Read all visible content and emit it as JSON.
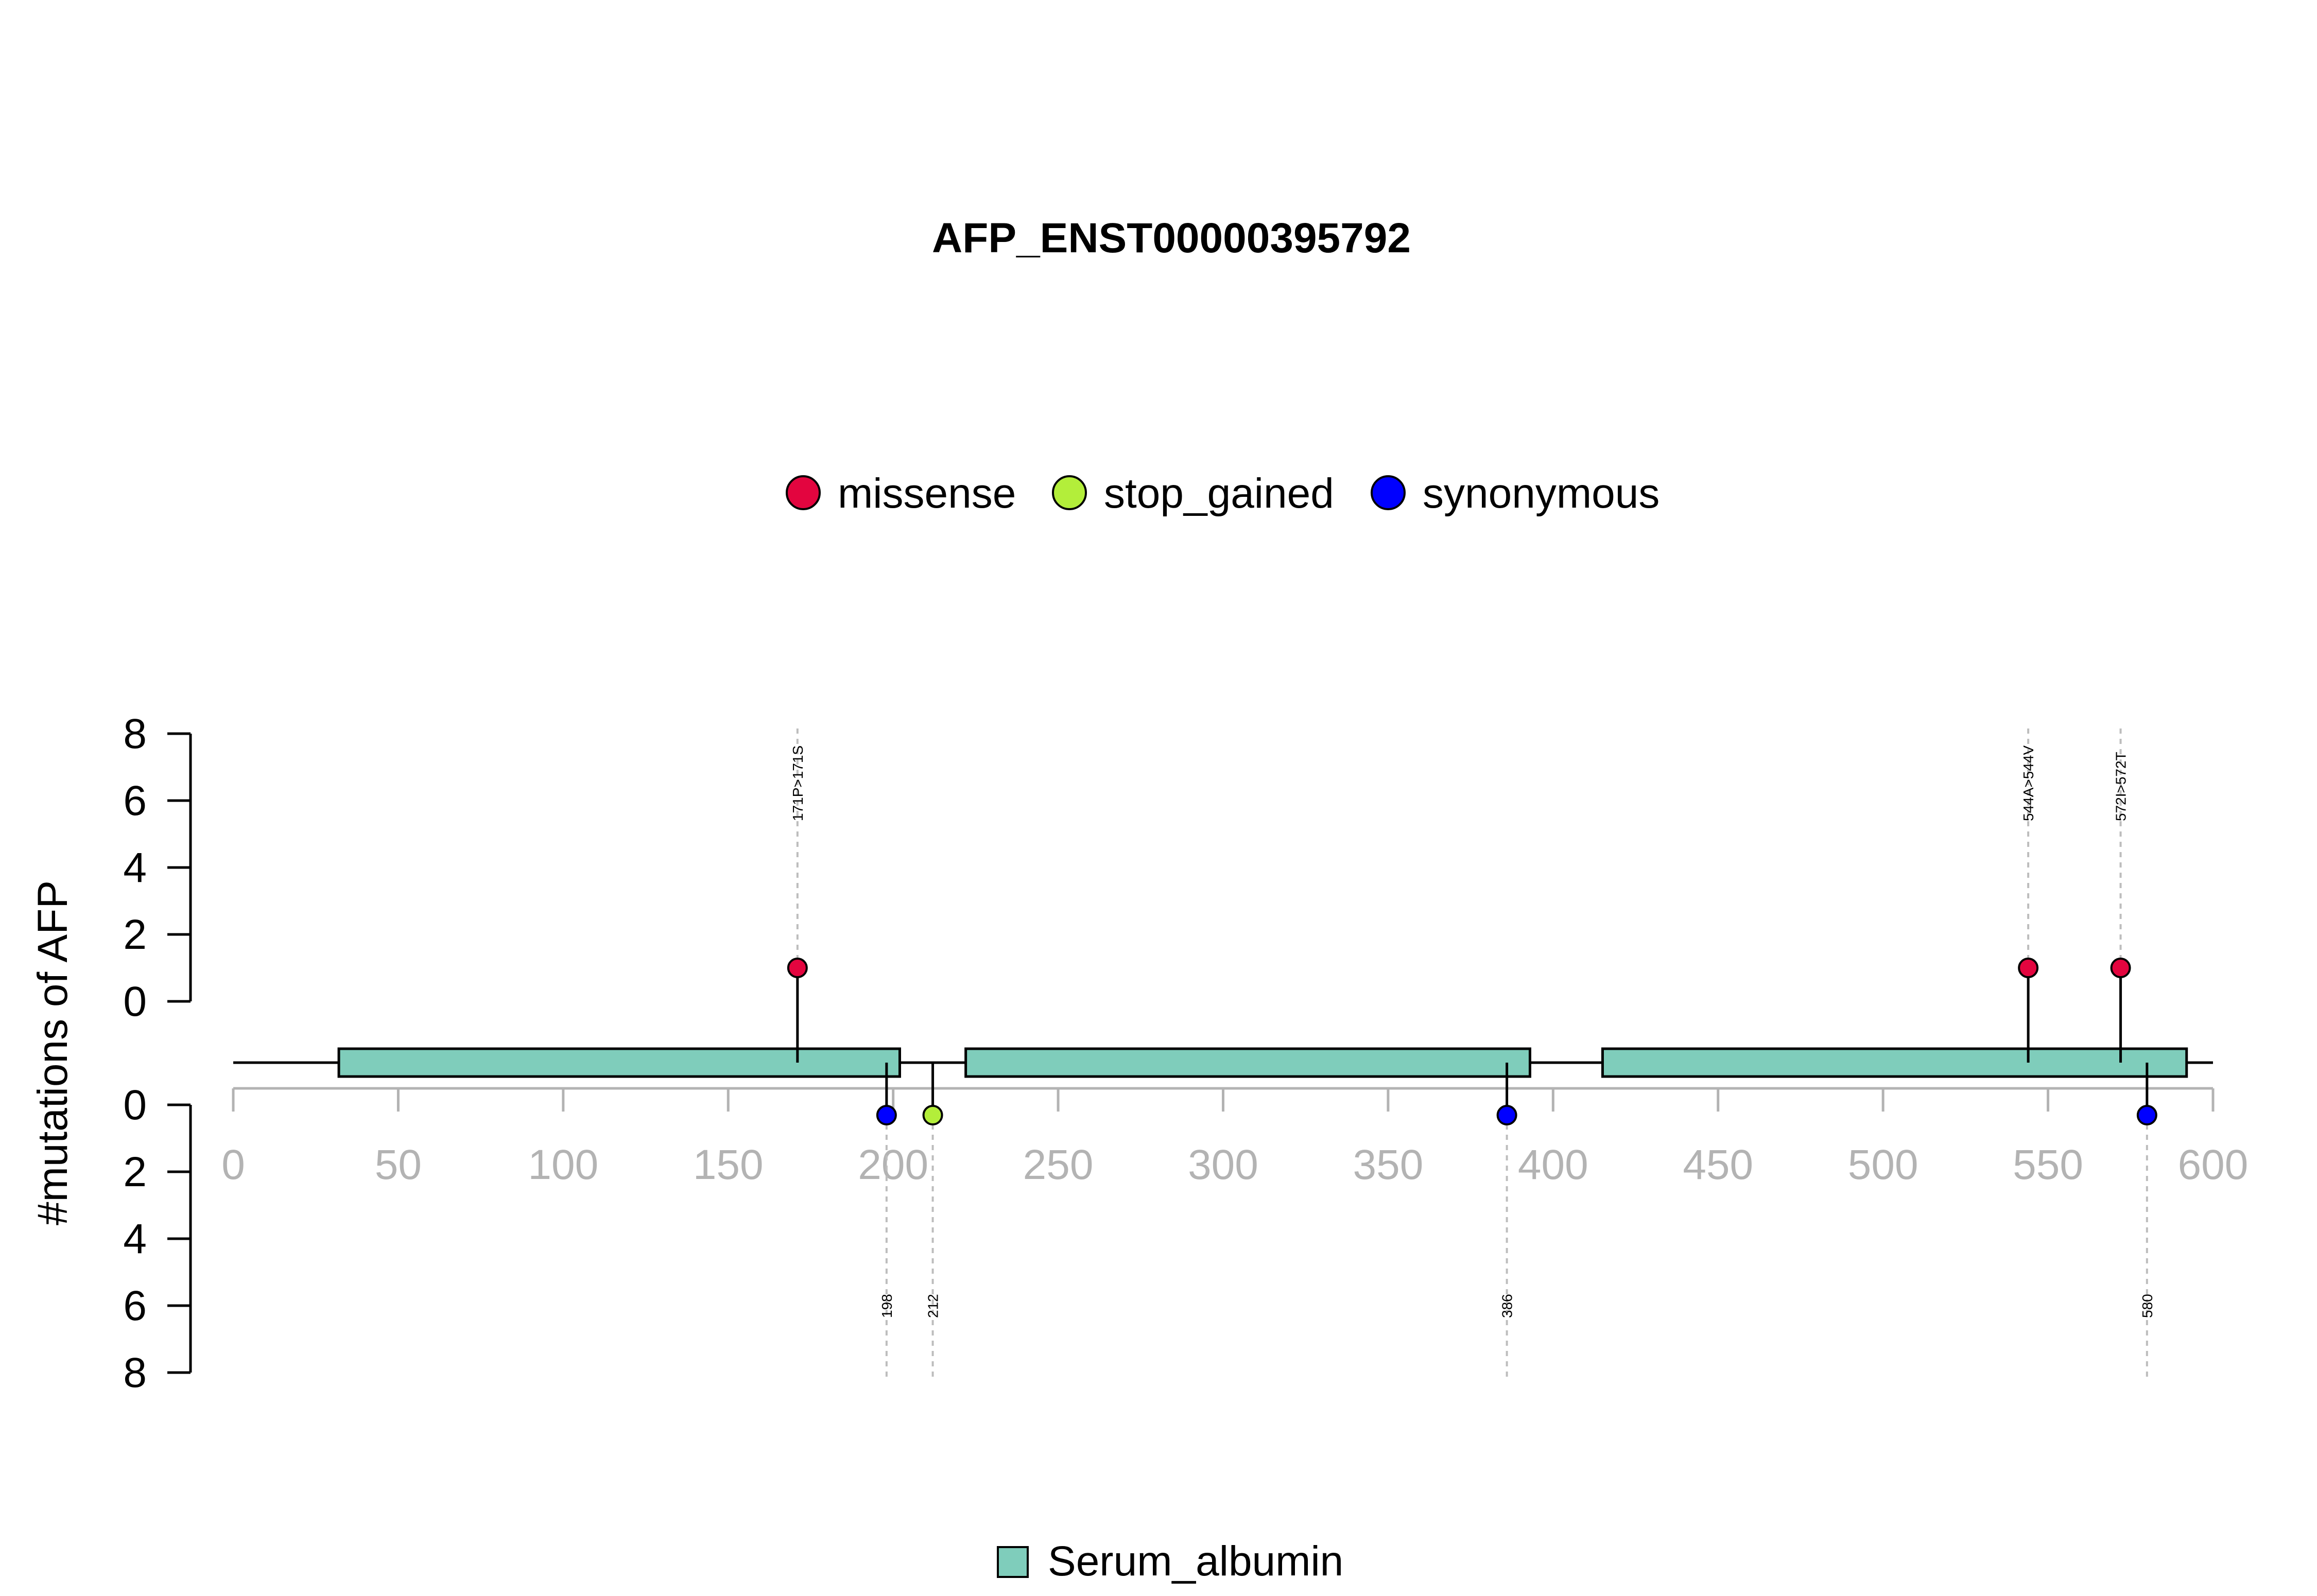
{
  "chart_data": {
    "type": "lollipop",
    "title": "AFP_ENST00000395792",
    "ylabel": "#mutations of AFP",
    "xlim": [
      0,
      600
    ],
    "x_ticks": [
      0,
      50,
      100,
      150,
      200,
      250,
      300,
      350,
      400,
      450,
      500,
      550,
      600
    ],
    "y_ticks": [
      0,
      2,
      4,
      6,
      8
    ],
    "legend": [
      {
        "label": "missense",
        "color": "#e3053f"
      },
      {
        "label": "stop_gained",
        "color": "#b3ee3a"
      },
      {
        "label": "synonymous",
        "color": "#0000ff"
      }
    ],
    "domain_legend": [
      {
        "label": "Serum_albumin",
        "color": "#7fcdbb"
      }
    ],
    "domains": [
      {
        "name": "Serum_albumin",
        "start": 32,
        "end": 202
      },
      {
        "name": "Serum_albumin",
        "start": 222,
        "end": 393
      },
      {
        "name": "Serum_albumin",
        "start": 415,
        "end": 592
      }
    ],
    "protein_length": 600,
    "mutations": [
      {
        "pos": 171,
        "count": 1,
        "type": "missense",
        "side": "top",
        "label": "171P>171S"
      },
      {
        "pos": 544,
        "count": 1,
        "type": "missense",
        "side": "top",
        "label": "544A>544V"
      },
      {
        "pos": 572,
        "count": 1,
        "type": "missense",
        "side": "top",
        "label": "572I>572T"
      },
      {
        "pos": 198,
        "count": 1,
        "type": "synonymous",
        "side": "bottom",
        "label": "198"
      },
      {
        "pos": 212,
        "count": 1,
        "type": "stop_gained",
        "side": "bottom",
        "label": "212"
      },
      {
        "pos": 386,
        "count": 1,
        "type": "synonymous",
        "side": "bottom",
        "label": "386"
      },
      {
        "pos": 580,
        "count": 1,
        "type": "synonymous",
        "side": "bottom",
        "label": "580"
      }
    ]
  }
}
